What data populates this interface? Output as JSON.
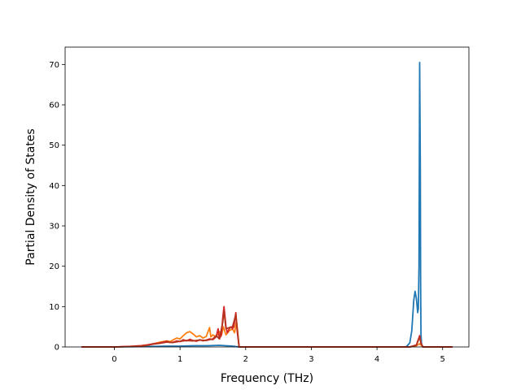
{
  "chart_data": {
    "type": "line",
    "title": "",
    "xlabel": "Frequency (THz)",
    "ylabel": "Partial Density of States",
    "xlim": [
      -0.75,
      5.4
    ],
    "ylim": [
      0,
      74.3
    ],
    "xticks": [
      0,
      1,
      2,
      3,
      4,
      5
    ],
    "yticks": [
      0,
      10,
      20,
      30,
      40,
      50,
      60,
      70
    ],
    "grid": false,
    "legend": "none",
    "series": [
      {
        "color": "#1f77b4",
        "x": [
          -0.5,
          0.0,
          0.5,
          0.8,
          1.0,
          1.2,
          1.4,
          1.6,
          1.7,
          1.8,
          1.9,
          4.4,
          4.45,
          4.5,
          4.53,
          4.56,
          4.58,
          4.6,
          4.62,
          4.63,
          4.64,
          4.645,
          4.65,
          4.66,
          4.665,
          4.67,
          4.68,
          4.7,
          5.15
        ],
        "values": [
          0,
          0,
          0.1,
          0.2,
          0.2,
          0.3,
          0.3,
          0.4,
          0.3,
          0.2,
          0,
          0,
          0.1,
          1.0,
          4.0,
          11.5,
          13.8,
          12.0,
          8.5,
          9.5,
          20.0,
          45.0,
          70.5,
          45.0,
          15.0,
          3.0,
          0.5,
          0,
          0
        ]
      },
      {
        "color": "#ff7f0e",
        "x": [
          -0.5,
          0.0,
          0.2,
          0.4,
          0.5,
          0.6,
          0.7,
          0.8,
          0.85,
          0.9,
          0.95,
          1.0,
          1.05,
          1.1,
          1.15,
          1.2,
          1.25,
          1.3,
          1.35,
          1.4,
          1.45,
          1.47,
          1.5,
          1.55,
          1.6,
          1.63,
          1.66,
          1.7,
          1.75,
          1.8,
          1.83,
          1.86,
          1.9,
          4.5,
          4.6,
          4.65,
          4.7,
          5.15
        ],
        "values": [
          0,
          0,
          0.1,
          0.3,
          0.5,
          0.8,
          1.2,
          1.5,
          1.3,
          1.8,
          2.2,
          2.0,
          2.8,
          3.5,
          3.8,
          3.2,
          2.5,
          2.8,
          2.2,
          2.6,
          4.8,
          2.5,
          3.0,
          2.5,
          3.8,
          2.8,
          5.0,
          3.0,
          4.0,
          4.5,
          3.5,
          6.5,
          0,
          0,
          0.3,
          0.8,
          0,
          0
        ]
      },
      {
        "color": "#d62728",
        "x": [
          -0.5,
          0.0,
          0.2,
          0.4,
          0.5,
          0.6,
          0.7,
          0.8,
          0.85,
          0.9,
          0.95,
          1.0,
          1.05,
          1.1,
          1.15,
          1.2,
          1.25,
          1.3,
          1.35,
          1.4,
          1.45,
          1.5,
          1.55,
          1.58,
          1.6,
          1.63,
          1.65,
          1.67,
          1.7,
          1.72,
          1.75,
          1.78,
          1.8,
          1.82,
          1.85,
          1.87,
          1.9,
          4.5,
          4.6,
          4.65,
          4.67,
          4.7,
          5.15
        ],
        "values": [
          0,
          0,
          0.1,
          0.3,
          0.5,
          0.8,
          1.0,
          1.4,
          1.1,
          1.2,
          1.5,
          1.3,
          1.8,
          1.5,
          1.9,
          1.6,
          1.4,
          1.8,
          1.5,
          1.7,
          2.0,
          1.8,
          2.5,
          4.5,
          2.0,
          3.0,
          7.0,
          10.0,
          5.0,
          3.5,
          4.5,
          5.0,
          4.5,
          5.0,
          8.5,
          4.0,
          0,
          0,
          0.5,
          2.8,
          1.0,
          0,
          0
        ]
      },
      {
        "color": "#b5341e",
        "x": [
          -0.5,
          0.0,
          0.2,
          0.4,
          0.5,
          0.6,
          0.7,
          0.8,
          0.9,
          1.0,
          1.1,
          1.2,
          1.3,
          1.4,
          1.5,
          1.55,
          1.6,
          1.65,
          1.67,
          1.7,
          1.75,
          1.8,
          1.85,
          1.9,
          4.5,
          4.6,
          4.65,
          4.67,
          4.7,
          5.15
        ],
        "values": [
          0,
          0,
          0.1,
          0.2,
          0.4,
          0.7,
          0.9,
          1.2,
          1.1,
          1.4,
          1.6,
          1.5,
          1.7,
          1.6,
          2.0,
          2.8,
          2.0,
          6.0,
          9.0,
          4.5,
          4.8,
          5.0,
          8.0,
          0,
          0,
          0.4,
          2.5,
          0.8,
          0,
          0
        ]
      }
    ]
  }
}
